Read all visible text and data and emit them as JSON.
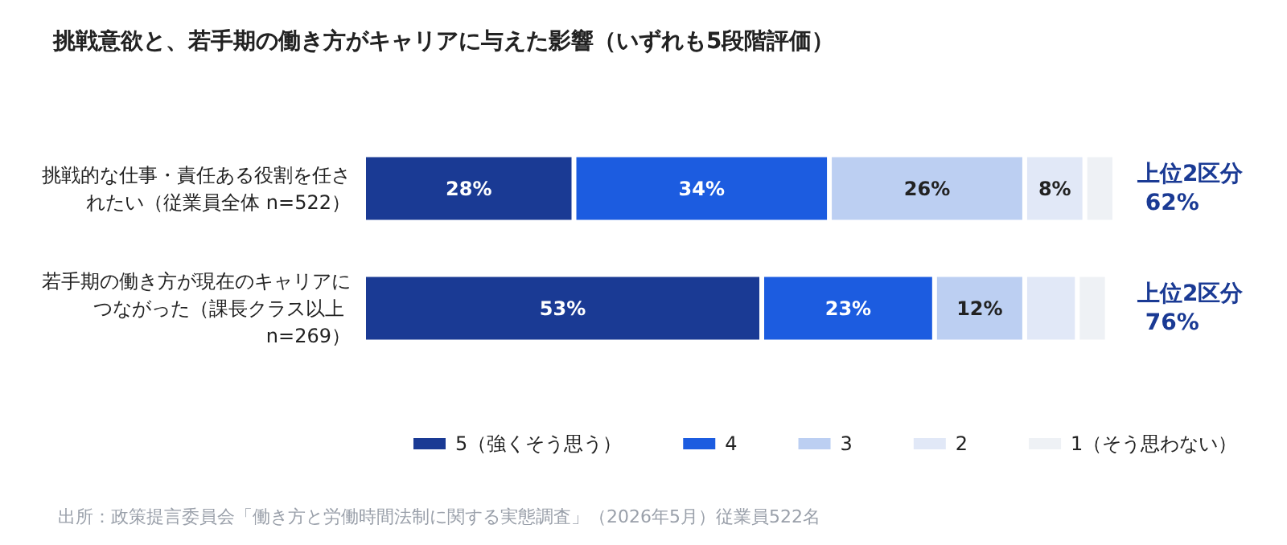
{
  "chart_data": {
    "type": "bar",
    "orientation": "horizontal",
    "stacked": true,
    "title": "挑戦意欲と、若手期の働き方がキャリアに与えた影響（いずれも5段階評価）",
    "categories": [
      "挑戦的な仕事・責任ある役割を任されたい（従業員全体 n=522）",
      "若手期の働き方が現在のキャリアにつながった（課長クラス以上 n=269）"
    ],
    "series": [
      {
        "name": "5（強くそう思う）",
        "color": "#1a3a94",
        "values": [
          28,
          53
        ],
        "value_labels": [
          "28%",
          "53%"
        ]
      },
      {
        "name": "4",
        "color": "#1c5ce0",
        "values": [
          34,
          23
        ],
        "value_labels": [
          "34%",
          "23%"
        ]
      },
      {
        "name": "3",
        "color": "#bccff2",
        "values": [
          26,
          12
        ],
        "value_labels": [
          "26%",
          "12%"
        ]
      },
      {
        "name": "2",
        "color": "#e1e8f7",
        "values": [
          8,
          7
        ],
        "value_labels": [
          "8%",
          null
        ]
      },
      {
        "name": "1（そう思わない）",
        "color": "#eef1f5",
        "values": [
          4,
          4
        ],
        "value_labels": [
          null,
          null
        ]
      }
    ],
    "xlim": [
      0,
      100
    ],
    "tick_labels": "y",
    "grid": false,
    "legend": "bottom",
    "annotations": [
      "上位2区分 62%",
      "上位2区分 76%",
      "出所：政策提言委員会「働き方と労働時間法制に関する実態調査」（2026年5月）従業員522名"
    ]
  }
}
